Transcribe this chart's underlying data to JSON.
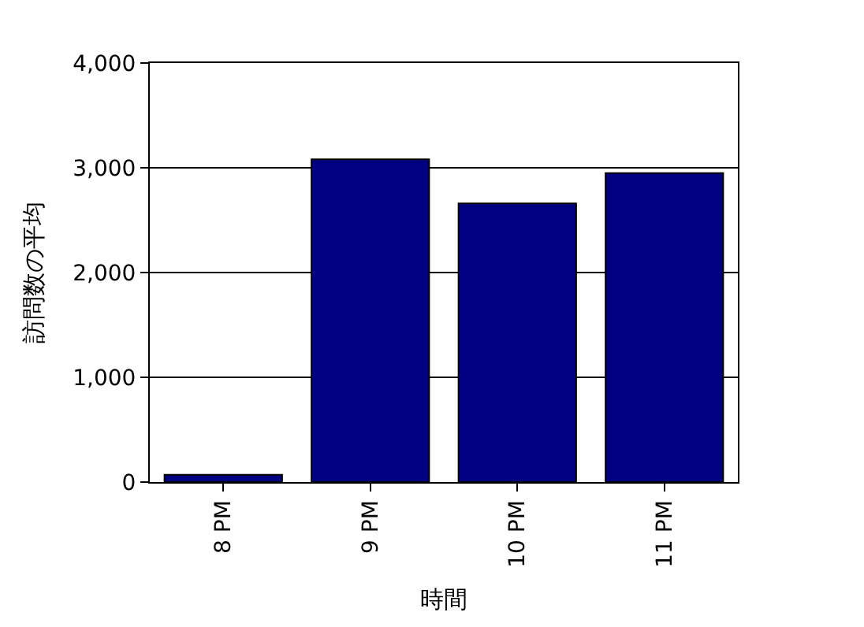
{
  "chart_data": {
    "type": "bar",
    "xlabel": "時間",
    "ylabel": "訪問数の平均",
    "categories": [
      "8 PM",
      "9 PM",
      "10 PM",
      "11 PM"
    ],
    "values": [
      70,
      3080,
      2660,
      2950
    ],
    "color": "#000080",
    "ylim": [
      0,
      4000
    ],
    "yticks": [
      {
        "value": 0,
        "label": "0"
      },
      {
        "value": 1000,
        "label": "1,000"
      },
      {
        "value": 2000,
        "label": "2,000"
      },
      {
        "value": 3000,
        "label": "3,000"
      },
      {
        "value": 4000,
        "label": "4,000"
      }
    ],
    "grid": "y"
  }
}
